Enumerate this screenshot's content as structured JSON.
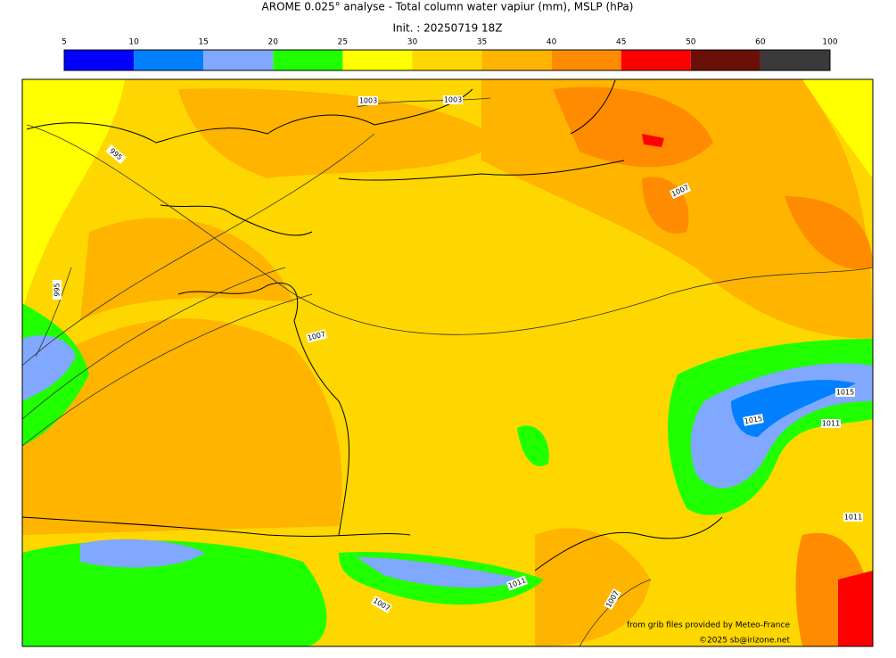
{
  "title": "AROME 0.025° analyse - Total column water vapiur (mm), MSLP (hPa)",
  "subtitle": "Init. : 20250719 18Z",
  "colorbar": {
    "ticks": [
      5,
      10,
      15,
      20,
      25,
      30,
      35,
      40,
      45,
      50,
      60,
      100
    ],
    "colors": [
      "#0000ff",
      "#0080ff",
      "#80a8ff",
      "#20ff00",
      "#ffff00",
      "#ffd700",
      "#ffb400",
      "#ff8c00",
      "#ff0000",
      "#6b1008",
      "#3a3a3a"
    ]
  },
  "contour_labels": [
    "1003",
    "1003",
    "995",
    "1007",
    "995",
    "1007",
    "1015",
    "1015",
    "1011",
    "1011",
    "1011",
    "1007",
    "1007"
  ],
  "credits": [
    "from grib files provided by Meteo-France",
    "©2025 sb@irizone.net"
  ]
}
